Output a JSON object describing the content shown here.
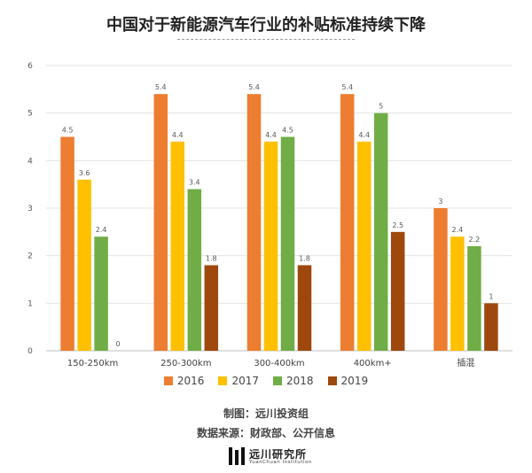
{
  "chart_data": {
    "type": "bar",
    "title": "中国对于新能源汽车行业的补贴标准持续下降",
    "categories": [
      "150-250km",
      "250-300km",
      "300-400km",
      "400km+",
      "插混"
    ],
    "series": [
      {
        "name": "2016",
        "color": "#ED7D31",
        "values": [
          4.5,
          5.4,
          5.4,
          5.4,
          3
        ]
      },
      {
        "name": "2017",
        "color": "#FFC000",
        "values": [
          3.6,
          4.4,
          4.4,
          4.4,
          2.4
        ]
      },
      {
        "name": "2018",
        "color": "#70AD47",
        "values": [
          2.4,
          3.4,
          4.5,
          5,
          2.2
        ]
      },
      {
        "name": "2019",
        "color": "#9E480E",
        "values": [
          0,
          1.8,
          1.8,
          2.5,
          1
        ]
      }
    ],
    "yticks": [
      0,
      1,
      2,
      3,
      4,
      5,
      6
    ],
    "ylim": [
      0,
      6
    ],
    "grid": true,
    "legend_position": "bottom"
  },
  "footer": {
    "credit_line1": "制图：远川投资组",
    "credit_line2": "数据来源：财政部、公开信息",
    "logo_name": "远川研究所",
    "logo_sub": "YuanChuan Institution"
  }
}
